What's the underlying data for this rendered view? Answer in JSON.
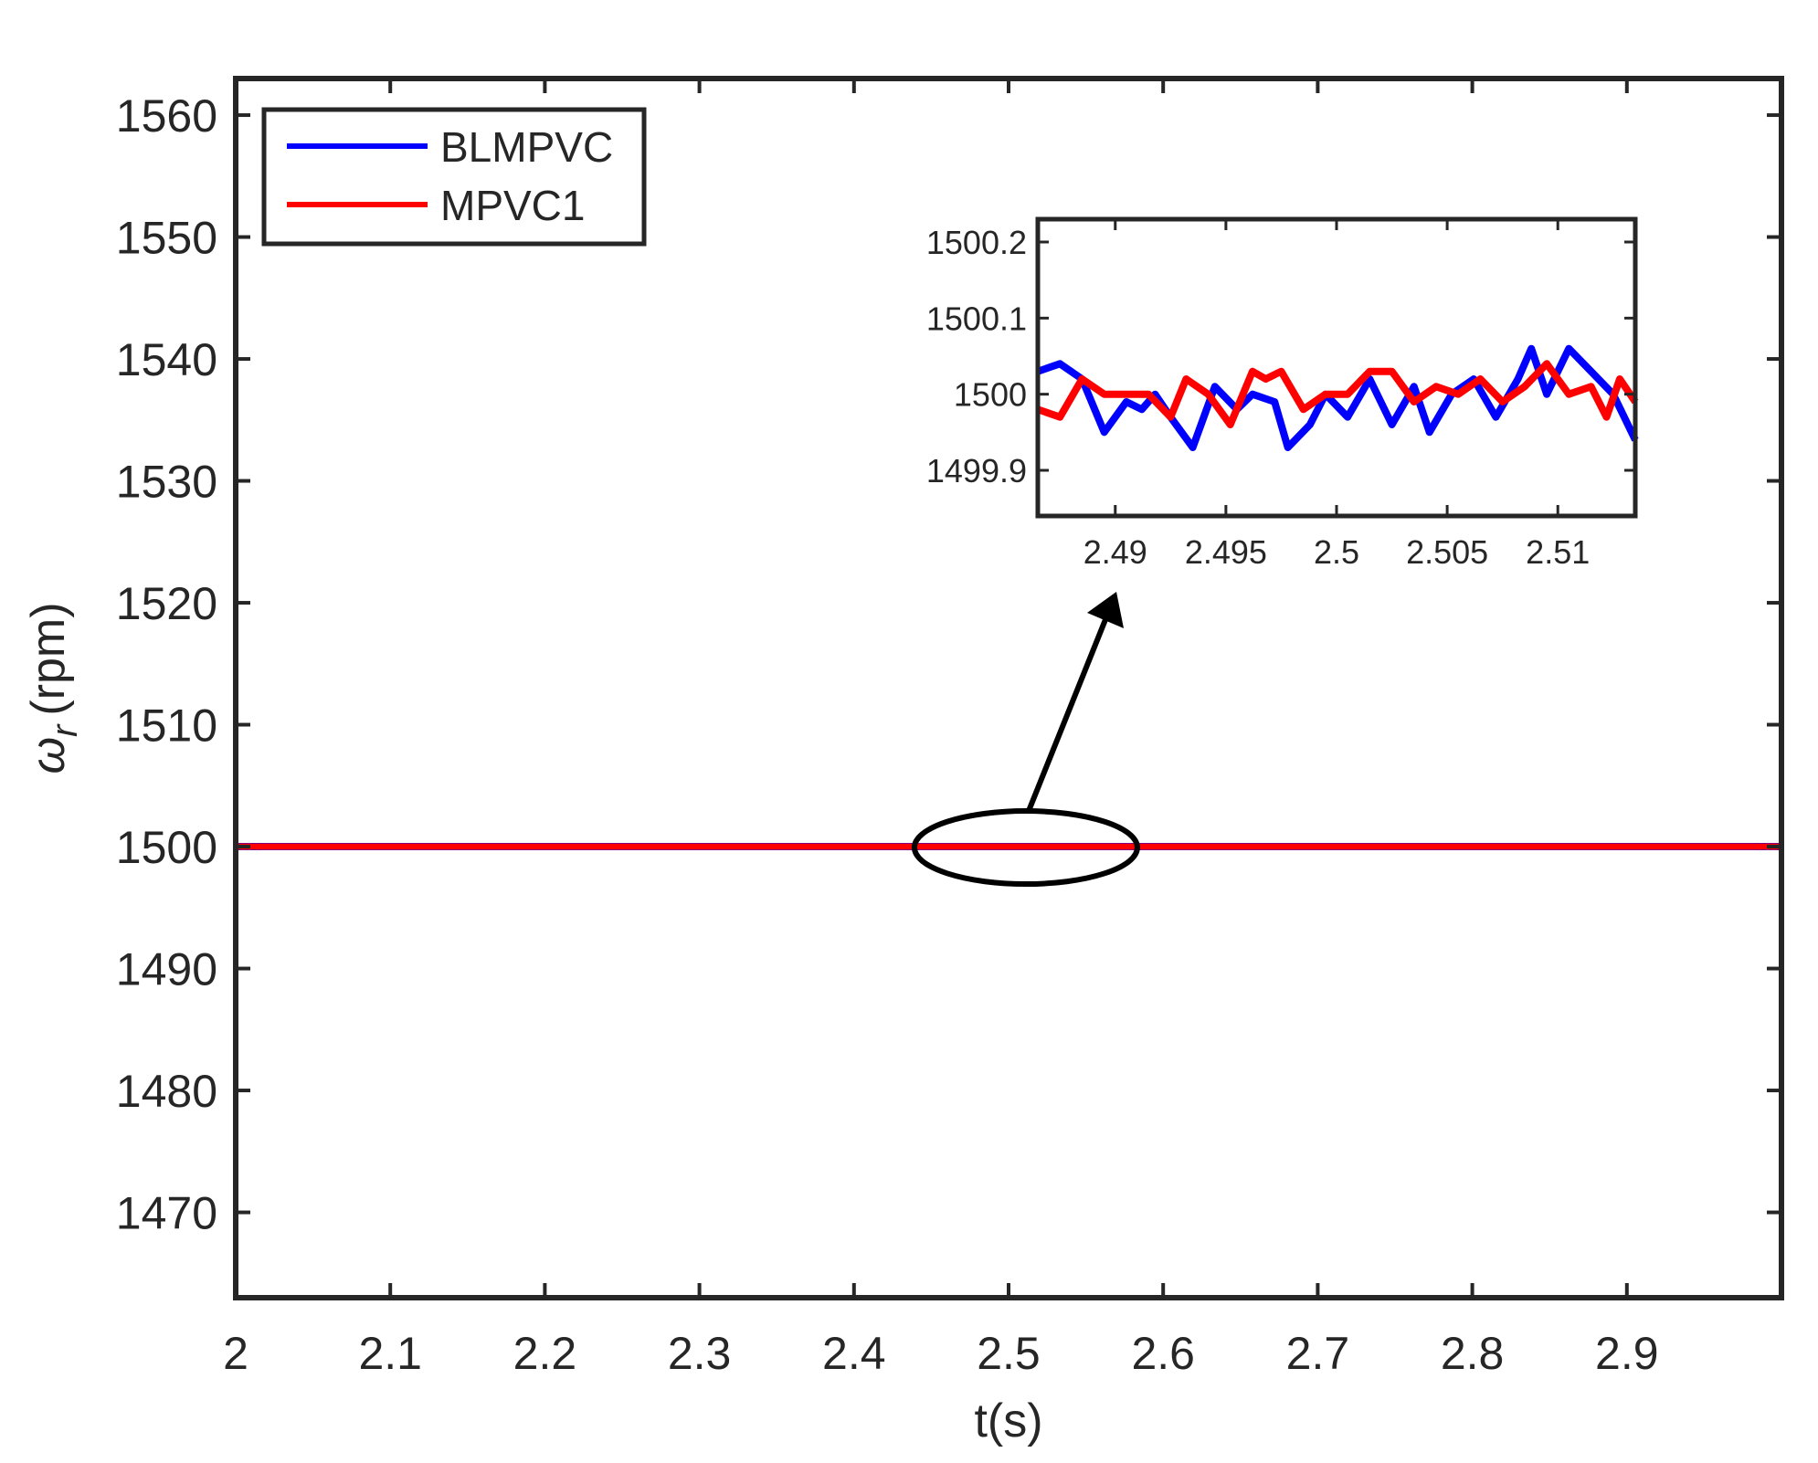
{
  "chart_data": [
    {
      "type": "line",
      "xlabel": "t(s)",
      "ylabel": "(rpm)",
      "ylabel_symbol": "ω",
      "ylabel_subscript": "r",
      "xlim": [
        2.0,
        3.0
      ],
      "ylim": [
        1463,
        1563
      ],
      "xticks": [
        2,
        2.1,
        2.2,
        2.3,
        2.4,
        2.5,
        2.6,
        2.7,
        2.8,
        2.9
      ],
      "xtick_labels": [
        "2",
        "2.1",
        "2.2",
        "2.3",
        "2.4",
        "2.5",
        "2.6",
        "2.7",
        "2.8",
        "2.9"
      ],
      "yticks": [
        1470,
        1480,
        1490,
        1500,
        1510,
        1520,
        1530,
        1540,
        1550,
        1560
      ],
      "ytick_labels": [
        "1470",
        "1480",
        "1490",
        "1500",
        "1510",
        "1520",
        "1530",
        "1540",
        "1550",
        "1560"
      ],
      "grid": false,
      "legend_position": "top-left",
      "series": [
        {
          "name": "BLMPVC",
          "color": "#0000ff",
          "x": [
            2.0,
            3.0
          ],
          "y": [
            1500.0,
            1500.0
          ]
        },
        {
          "name": "MPVC1",
          "color": "#ff0000",
          "x": [
            2.0,
            3.0
          ],
          "y": [
            1500.0,
            1500.0
          ]
        }
      ],
      "annotation": {
        "type": "ellipse-arrow",
        "center": [
          2.51,
          1500
        ],
        "note": "zoomed region highlighted, arrow points to inset"
      }
    },
    {
      "type": "line",
      "role": "inset",
      "xlim": [
        2.4865,
        2.5135
      ],
      "ylim": [
        1499.84,
        1500.23
      ],
      "xticks": [
        2.49,
        2.495,
        2.5,
        2.505,
        2.51
      ],
      "xtick_labels": [
        "2.49",
        "2.495",
        "2.5",
        "2.505",
        "2.51"
      ],
      "yticks": [
        1499.9,
        1500,
        1500.1,
        1500.2
      ],
      "ytick_labels": [
        "1499.9",
        "1500",
        "1500.1",
        "1500.2"
      ],
      "series": [
        {
          "name": "BLMPVC",
          "color": "#0000ff",
          "x": [
            2.4865,
            2.4875,
            2.4885,
            2.4895,
            2.4905,
            2.4912,
            2.4918,
            2.4925,
            2.4935,
            2.4945,
            2.4955,
            2.4962,
            2.4972,
            2.4978,
            2.4988,
            2.4995,
            2.5005,
            2.5015,
            2.5025,
            2.5035,
            2.5042,
            2.5052,
            2.5062,
            2.5072,
            2.5082,
            2.5088,
            2.5095,
            2.5105,
            2.5115,
            2.5125,
            2.5135
          ],
          "y": [
            1500.03,
            1500.04,
            1500.02,
            1499.95,
            1499.99,
            1499.98,
            1500.0,
            1499.97,
            1499.93,
            1500.01,
            1499.98,
            1500.0,
            1499.99,
            1499.93,
            1499.96,
            1500.0,
            1499.97,
            1500.02,
            1499.96,
            1500.01,
            1499.95,
            1500.0,
            1500.02,
            1499.97,
            1500.02,
            1500.06,
            1500.0,
            1500.06,
            1500.03,
            1500.0,
            1499.94
          ]
        },
        {
          "name": "MPVC1",
          "color": "#ff0000",
          "x": [
            2.4865,
            2.4875,
            2.4885,
            2.4895,
            2.4905,
            2.4915,
            2.4925,
            2.4932,
            2.4942,
            2.4952,
            2.4962,
            2.4968,
            2.4975,
            2.4985,
            2.4995,
            2.5005,
            2.5015,
            2.5025,
            2.5035,
            2.5045,
            2.5055,
            2.5065,
            2.5075,
            2.5085,
            2.5095,
            2.5105,
            2.5115,
            2.5122,
            2.5128,
            2.5135
          ],
          "y": [
            1499.98,
            1499.97,
            1500.02,
            1500.0,
            1500.0,
            1500.0,
            1499.97,
            1500.02,
            1500.0,
            1499.96,
            1500.03,
            1500.02,
            1500.03,
            1499.98,
            1500.0,
            1500.0,
            1500.03,
            1500.03,
            1499.99,
            1500.01,
            1500.0,
            1500.02,
            1499.99,
            1500.01,
            1500.04,
            1500.0,
            1500.01,
            1499.97,
            1500.02,
            1499.99
          ]
        }
      ]
    }
  ]
}
